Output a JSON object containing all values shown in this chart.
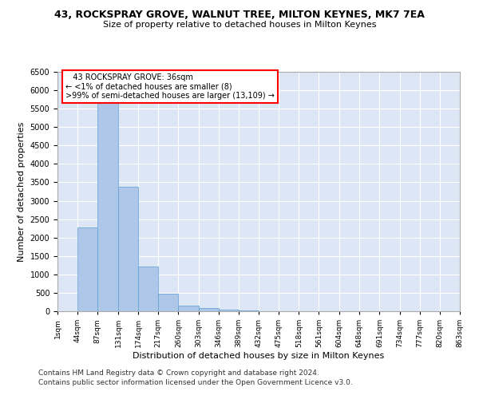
{
  "title": "43, ROCKSPRAY GROVE, WALNUT TREE, MILTON KEYNES, MK7 7EA",
  "subtitle": "Size of property relative to detached houses in Milton Keynes",
  "xlabel": "Distribution of detached houses by size in Milton Keynes",
  "ylabel": "Number of detached properties",
  "footnote1": "Contains HM Land Registry data © Crown copyright and database right 2024.",
  "footnote2": "Contains public sector information licensed under the Open Government Licence v3.0.",
  "annotation_line1": "   43 ROCKSPRAY GROVE: 36sqm",
  "annotation_line2": "← <1% of detached houses are smaller (8)",
  "annotation_line3": ">99% of semi-detached houses are larger (13,109) →",
  "bar_color": "#aec6e8",
  "bar_edge_color": "#5a9fd4",
  "bg_color": "#dce6f5",
  "grid_color": "#ffffff",
  "bin_edges": [
    1,
    44,
    87,
    131,
    174,
    217,
    260,
    303,
    346,
    389,
    432,
    475,
    518,
    561,
    604,
    648,
    691,
    734,
    777,
    820,
    863
  ],
  "bar_heights": [
    8,
    2280,
    5700,
    3380,
    1220,
    480,
    155,
    85,
    45,
    15,
    5,
    2,
    1,
    1,
    0,
    0,
    0,
    0,
    0,
    0
  ],
  "ylim": [
    0,
    6500
  ],
  "yticks": [
    0,
    500,
    1000,
    1500,
    2000,
    2500,
    3000,
    3500,
    4000,
    4500,
    5000,
    5500,
    6000,
    6500
  ]
}
